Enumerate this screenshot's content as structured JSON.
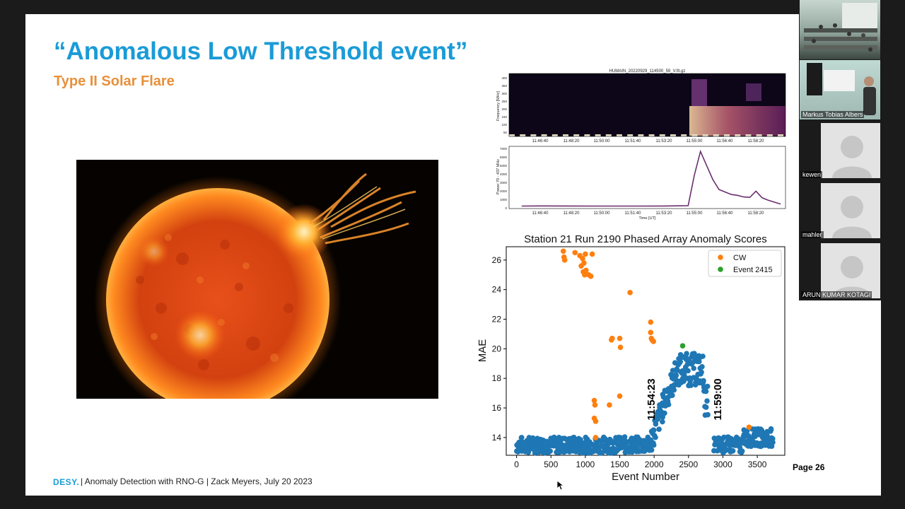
{
  "slide": {
    "title": "“Anomalous Low Threshold event”",
    "subtitle": "Type II Solar Flare",
    "footer": {
      "logo": "DESY.",
      "text": "| Anomaly Detection with  RNO-G | Zack Meyers, July 20 2023"
    },
    "page_label": "Page 26"
  },
  "spectrogram": {
    "title": "HUMAIN_20220929_114500_59_V.fit.gz",
    "ylabel": "Frequency [MHz]",
    "yticks": [
      "400",
      "350",
      "300",
      "250",
      "200",
      "150",
      "100",
      "50"
    ],
    "xticks": [
      "11:46:40",
      "11:48:20",
      "11:50:00",
      "11:51:40",
      "11:53:20",
      "11:55:00",
      "11:56:40",
      "11:58:20"
    ],
    "xlabel": "Time [UT]"
  },
  "power_plot": {
    "ylabel": "Power 70 - 437 MHz",
    "yticks": [
      "7000",
      "6000",
      "5000",
      "4000",
      "3000",
      "2000",
      "1000",
      "0"
    ],
    "xticks": [
      "11:46:40",
      "11:48:20",
      "11:50:00",
      "11:51:40",
      "11:53:20",
      "11:55:00",
      "11:56:40",
      "11:58:20"
    ],
    "xlabel": "Time [UT]",
    "color": "#6b2f6e"
  },
  "chart_data": [
    {
      "type": "line",
      "title": "",
      "xlabel": "Time [UT]",
      "ylabel": "Power 70 - 437 MHz",
      "ylim": [
        0,
        7000
      ],
      "x": [
        "11:45:40",
        "11:46:40",
        "11:48:20",
        "11:50:00",
        "11:51:40",
        "11:53:20",
        "11:54:40",
        "11:55:00",
        "11:55:20",
        "11:55:40",
        "11:56:00",
        "11:56:20",
        "11:56:40",
        "11:57:00",
        "11:57:20",
        "11:57:40",
        "11:58:00",
        "11:58:20",
        "11:58:40",
        "11:59:00",
        "11:59:40"
      ],
      "series": [
        {
          "values": [
            300,
            320,
            310,
            300,
            300,
            310,
            350,
            4000,
            6900,
            5200,
            3500,
            2300,
            2000,
            1700,
            1600,
            1400,
            1350,
            2100,
            1300,
            1000,
            550
          ]
        }
      ]
    },
    {
      "type": "scatter",
      "title": "Station 21 Run 2190 Phased Array Anomaly Scores",
      "xlabel": "Event Number",
      "ylabel": "MAE",
      "xlim": [
        -150,
        3900
      ],
      "ylim": [
        12.8,
        26.9
      ],
      "xticks": [
        0,
        500,
        1000,
        1500,
        2000,
        2500,
        3000,
        3500
      ],
      "yticks": [
        14,
        16,
        18,
        20,
        22,
        24,
        26
      ],
      "legend": {
        "position": "top-right",
        "entries": [
          "CW",
          "Event 2415"
        ]
      },
      "annotations": [
        "11:54:23",
        "11:59:00"
      ],
      "series": [
        {
          "name": "CW",
          "color": "#ff7f0e",
          "points": [
            [
              680,
              26.6
            ],
            [
              690,
              26.2
            ],
            [
              700,
              26.0
            ],
            [
              850,
              26.5
            ],
            [
              920,
              26.3
            ],
            [
              960,
              26.1
            ],
            [
              980,
              25.8
            ],
            [
              1000,
              26.4
            ],
            [
              940,
              25.6
            ],
            [
              970,
              25.2
            ],
            [
              990,
              25.0
            ],
            [
              1010,
              25.3
            ],
            [
              1050,
              25.0
            ],
            [
              1080,
              24.9
            ],
            [
              1100,
              26.4
            ],
            [
              1650,
              23.8
            ],
            [
              1380,
              20.6
            ],
            [
              1390,
              20.7
            ],
            [
              1500,
              20.7
            ],
            [
              1510,
              20.1
            ],
            [
              1950,
              21.8
            ],
            [
              1950,
              21.1
            ],
            [
              1960,
              20.7
            ],
            [
              1970,
              20.6
            ],
            [
              1990,
              20.5
            ],
            [
              1130,
              16.5
            ],
            [
              1140,
              16.2
            ],
            [
              1350,
              16.2
            ],
            [
              1500,
              16.8
            ],
            [
              1130,
              15.3
            ],
            [
              1150,
              15.1
            ],
            [
              1150,
              14.0
            ],
            [
              3380,
              14.7
            ]
          ]
        },
        {
          "name": "Event 2415",
          "color": "#2ca02c",
          "points": [
            [
              2415,
              20.2
            ]
          ]
        },
        {
          "name": "",
          "color": "#1f77b4",
          "points": []
        }
      ]
    }
  ],
  "participants": {
    "tiles": [
      {
        "label": ""
      },
      {
        "label": "Markus Tobias Albers"
      },
      {
        "label": "kewen"
      },
      {
        "label": "mahler"
      },
      {
        "label": "ARUN KUMAR KOTAGI"
      }
    ]
  },
  "colors": {
    "title": "#1a9bd7",
    "subtitle": "#e8903a",
    "cw": "#ff7f0e",
    "event": "#2ca02c",
    "scores": "#1f77b4"
  }
}
